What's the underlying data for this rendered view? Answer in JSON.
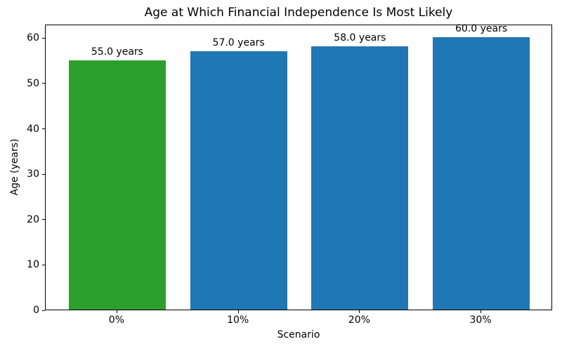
{
  "chart_data": {
    "type": "bar",
    "title": "Age at Which Financial Independence Is Most Likely",
    "xlabel": "Scenario",
    "ylabel": "Age (years)",
    "categories": [
      "0%",
      "10%",
      "20%",
      "30%"
    ],
    "values": [
      55.0,
      57.0,
      58.0,
      60.0
    ],
    "bar_labels": [
      "55.0 years",
      "57.0 years",
      "58.0 years",
      "60.0 years"
    ],
    "bar_colors": [
      "#2ca02c",
      "#1f77b4",
      "#1f77b4",
      "#1f77b4"
    ],
    "yticks": [
      0,
      10,
      20,
      30,
      40,
      50,
      60
    ],
    "ylim": [
      0,
      63
    ],
    "bar_width_ratio": 0.8,
    "grid": false,
    "legend_position": "none",
    "colors": {
      "highlight_bar": "#2ca02c",
      "default_bar": "#1f77b4",
      "text": "#000000",
      "spine": "#000000",
      "background": "#ffffff"
    }
  }
}
